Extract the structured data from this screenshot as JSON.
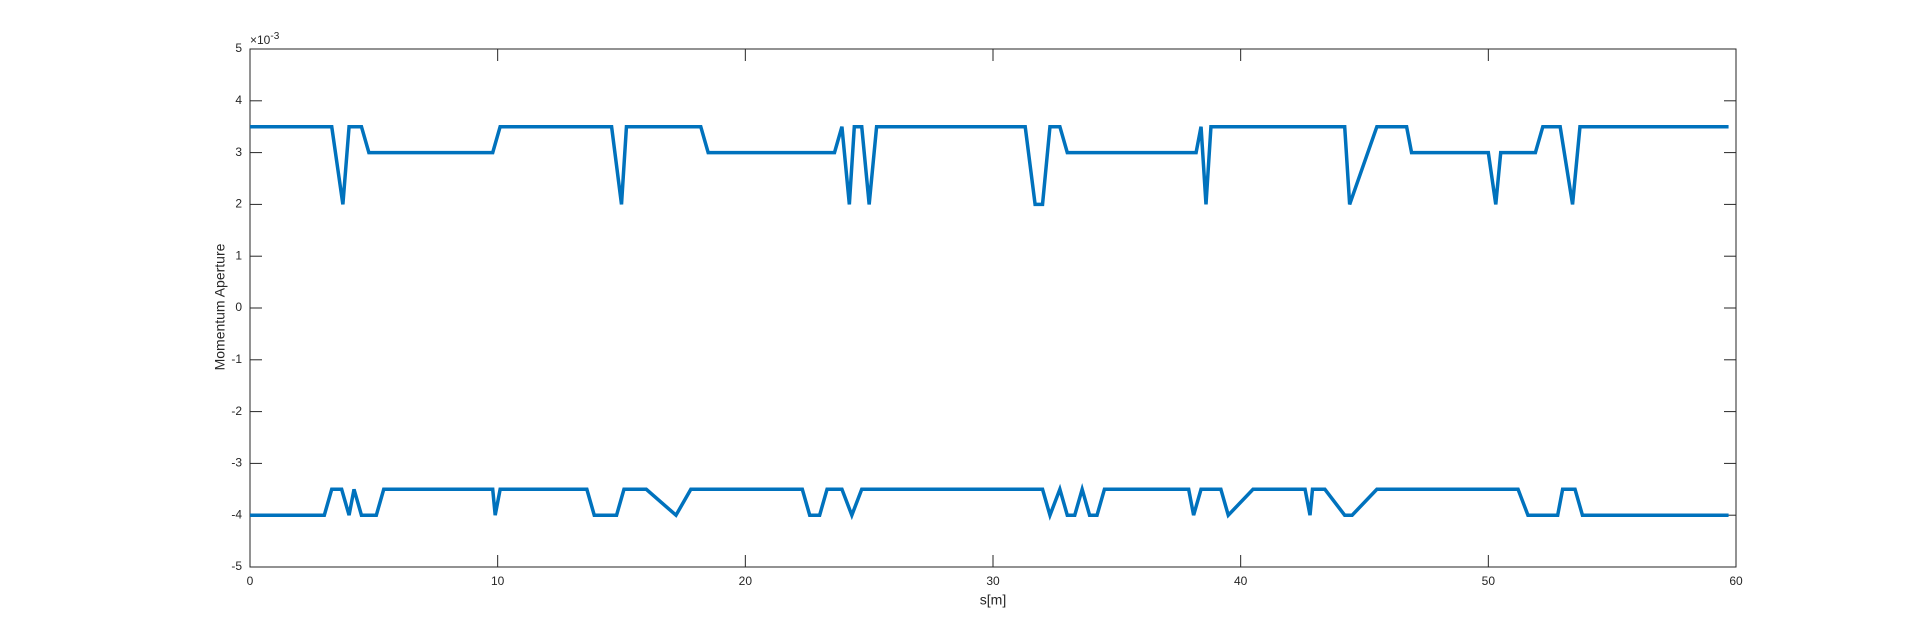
{
  "chart_data": {
    "type": "line",
    "x_label": "s[m]",
    "y_label": "Momentum Aperture",
    "y_exponent": {
      "base": "×10",
      "power": "-3"
    },
    "xlim": [
      0,
      60
    ],
    "xticks": [
      0,
      10,
      20,
      30,
      40,
      50,
      60
    ],
    "ylim": [
      -5,
      5
    ],
    "yticks": [
      -5,
      -4,
      -3,
      -2,
      -1,
      0,
      1,
      2,
      3,
      4,
      5
    ],
    "grid": false,
    "series": [
      {
        "color": "#0072bd",
        "x": [
          0,
          3.3,
          3.75,
          4.0,
          4.5,
          4.8,
          9.8,
          10.1,
          14.6,
          15.0,
          15.2,
          18.2,
          18.5,
          23.6,
          23.9,
          24.2,
          24.4,
          24.7,
          25.0,
          25.3,
          31.3,
          31.7,
          32.0,
          32.3,
          32.7,
          33.0,
          38.2,
          38.4,
          38.6,
          38.8,
          44.2,
          44.4,
          45.5,
          46.7,
          46.9,
          50.0,
          50.3,
          50.5,
          51.9,
          52.2,
          52.9,
          53.4,
          53.7,
          59.7
        ],
        "values": [
          3.5,
          3.5,
          2,
          3.5,
          3.5,
          3,
          3,
          3.5,
          3.5,
          2,
          3.5,
          3.5,
          3,
          3,
          3.5,
          2,
          3.5,
          3.5,
          2,
          3.5,
          3.5,
          2,
          2,
          3.5,
          3.5,
          3,
          3,
          3.5,
          2,
          3.5,
          3.5,
          2,
          3.5,
          3.5,
          3,
          3,
          2,
          3,
          3,
          3.5,
          3.5,
          2,
          3.5,
          3.5
        ]
      },
      {
        "color": "#0072bd",
        "x": [
          0,
          3.0,
          3.3,
          3.7,
          4.0,
          4.2,
          4.5,
          5.1,
          5.4,
          9.8,
          9.9,
          10.1,
          13.6,
          13.9,
          14.8,
          15.1,
          16.0,
          17.2,
          17.8,
          22.3,
          22.6,
          23.0,
          23.3,
          23.9,
          24.3,
          24.7,
          32.0,
          32.3,
          32.7,
          33.0,
          33.3,
          33.6,
          33.9,
          34.2,
          34.5,
          37.9,
          38.1,
          38.4,
          39.2,
          39.5,
          40.5,
          42.6,
          42.8,
          42.9,
          43.4,
          44.2,
          44.5,
          45.5,
          51.2,
          51.6,
          52.8,
          53.0,
          53.5,
          53.8,
          59.7
        ],
        "values": [
          -4,
          -4,
          -3.5,
          -3.5,
          -4,
          -3.5,
          -4,
          -4,
          -3.5,
          -3.5,
          -4,
          -3.5,
          -3.5,
          -4,
          -4,
          -3.5,
          -3.5,
          -4,
          -3.5,
          -3.5,
          -4,
          -4,
          -3.5,
          -3.5,
          -4,
          -3.5,
          -3.5,
          -4,
          -3.5,
          -4,
          -4,
          -3.5,
          -4,
          -4,
          -3.5,
          -3.5,
          -4,
          -3.5,
          -3.5,
          -4,
          -3.5,
          -3.5,
          -4,
          -3.5,
          -3.5,
          -4,
          -4,
          -3.5,
          -3.5,
          -4,
          -4,
          -3.5,
          -3.5,
          -4,
          -4
        ]
      }
    ]
  }
}
